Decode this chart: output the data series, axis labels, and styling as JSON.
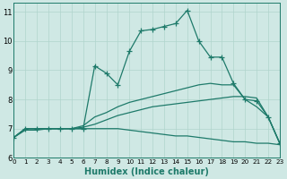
{
  "xlabel": "Humidex (Indice chaleur)",
  "bg_color": "#cfe8e4",
  "grid_color": "#b0d4cc",
  "line_color": "#1e7a6a",
  "xlim": [
    0,
    23
  ],
  "ylim": [
    6.0,
    11.3
  ],
  "xticks": [
    0,
    1,
    2,
    3,
    4,
    5,
    6,
    7,
    8,
    9,
    10,
    11,
    12,
    13,
    14,
    15,
    16,
    17,
    18,
    19,
    20,
    21,
    22,
    23
  ],
  "yticks": [
    6,
    7,
    8,
    9,
    10,
    11
  ],
  "line1_x": [
    0,
    1,
    2,
    3,
    4,
    5,
    6,
    7,
    8,
    9,
    10,
    11,
    12,
    13,
    14,
    15,
    16,
    17,
    18,
    19,
    20,
    21,
    22,
    23
  ],
  "line1_y": [
    6.7,
    6.95,
    6.95,
    7.0,
    7.0,
    7.0,
    7.0,
    7.0,
    7.0,
    7.0,
    6.95,
    6.9,
    6.85,
    6.8,
    6.75,
    6.75,
    6.7,
    6.65,
    6.6,
    6.55,
    6.55,
    6.5,
    6.5,
    6.45
  ],
  "line2_x": [
    0,
    1,
    2,
    3,
    4,
    5,
    6,
    7,
    8,
    9,
    10,
    11,
    12,
    13,
    14,
    15,
    16,
    17,
    18,
    19,
    20,
    21,
    22,
    23
  ],
  "line2_y": [
    6.7,
    7.0,
    7.0,
    7.0,
    7.0,
    7.0,
    7.05,
    7.15,
    7.3,
    7.45,
    7.55,
    7.65,
    7.75,
    7.8,
    7.85,
    7.9,
    7.95,
    8.0,
    8.05,
    8.1,
    8.1,
    8.05,
    7.4,
    6.5
  ],
  "line3_x": [
    0,
    1,
    2,
    3,
    4,
    5,
    6,
    7,
    8,
    9,
    10,
    11,
    12,
    13,
    14,
    15,
    16,
    17,
    18,
    19,
    20,
    21,
    22,
    23
  ],
  "line3_y": [
    6.7,
    7.0,
    7.0,
    7.0,
    7.0,
    7.0,
    7.1,
    7.4,
    7.55,
    7.75,
    7.9,
    8.0,
    8.1,
    8.2,
    8.3,
    8.4,
    8.5,
    8.55,
    8.5,
    8.5,
    8.0,
    7.75,
    7.4,
    6.5
  ],
  "line4_x": [
    0,
    1,
    2,
    3,
    4,
    5,
    6,
    7,
    8,
    9,
    10,
    11,
    12,
    13,
    14,
    15,
    16,
    17,
    18,
    19,
    20,
    21,
    22,
    23
  ],
  "line4_y": [
    6.7,
    7.0,
    7.0,
    7.0,
    7.0,
    7.0,
    7.0,
    9.15,
    8.9,
    8.5,
    9.65,
    10.35,
    10.4,
    10.5,
    10.6,
    11.05,
    10.0,
    9.45,
    9.45,
    8.55,
    8.0,
    7.95,
    7.4,
    6.5
  ]
}
